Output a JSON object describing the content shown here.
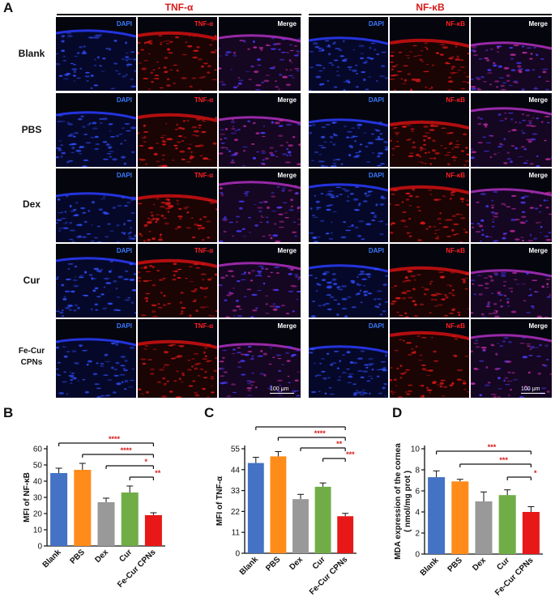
{
  "panel_a": {
    "letter": "A",
    "groups": [
      "TNF-α",
      "NF-κB"
    ],
    "rows": [
      "Blank",
      "PBS",
      "Dex",
      "Cur",
      "Fe-Cur\nCPNs"
    ],
    "channels_tnf": [
      "DAPI",
      "TNF-α",
      "Merge"
    ],
    "channels_nfkb": [
      "DAPI",
      "NF-κB",
      "Merge"
    ],
    "scale_bar": "100 μm"
  },
  "chart_data": [
    {
      "letter": "B",
      "type": "bar",
      "categories": [
        "Blank",
        "PBS",
        "Dex",
        "Cur",
        "Fe-Cur CPNs"
      ],
      "values": [
        45,
        47,
        27,
        33,
        19
      ],
      "errors": [
        3,
        4,
        2.5,
        4,
        1.5
      ],
      "colors": [
        "#4472c4",
        "#ff8c1a",
        "#999999",
        "#70ad47",
        "#e81818"
      ],
      "ylabel": "MFI of NF-κB",
      "ylim": [
        0,
        60
      ],
      "yticks": [
        0,
        10,
        20,
        30,
        40,
        50,
        60
      ],
      "significance": [
        {
          "from": 0,
          "to": 4,
          "label": "****"
        },
        {
          "from": 1,
          "to": 4,
          "label": "****"
        },
        {
          "from": 2,
          "to": 4,
          "label": "*"
        },
        {
          "from": 3,
          "to": 4,
          "label": "**"
        }
      ]
    },
    {
      "letter": "C",
      "type": "bar",
      "categories": [
        "Blank",
        "PBS",
        "Dex",
        "Cur",
        "Fe-Cur CPNs"
      ],
      "values": [
        47.5,
        51,
        28.5,
        35,
        19.5
      ],
      "errors": [
        3,
        2.5,
        2.5,
        2,
        1.5
      ],
      "colors": [
        "#4472c4",
        "#ff8c1a",
        "#999999",
        "#70ad47",
        "#e81818"
      ],
      "ylabel": "MFI of TNF-α",
      "ylim": [
        0,
        55
      ],
      "yticks": [
        0,
        11,
        22,
        33,
        44,
        55
      ],
      "significance": [
        {
          "from": 0,
          "to": 4,
          "label": "****"
        },
        {
          "from": 1,
          "to": 4,
          "label": "****"
        },
        {
          "from": 2,
          "to": 4,
          "label": "**"
        },
        {
          "from": 3,
          "to": 4,
          "label": "***"
        }
      ]
    },
    {
      "letter": "D",
      "type": "bar",
      "categories": [
        "Blank",
        "PBS",
        "Dex",
        "Cur",
        "Fe-Cur CPNs"
      ],
      "values": [
        7.3,
        6.9,
        5.0,
        5.6,
        4.0
      ],
      "errors": [
        0.6,
        0.2,
        0.9,
        0.5,
        0.5
      ],
      "colors": [
        "#4472c4",
        "#ff8c1a",
        "#999999",
        "#70ad47",
        "#e81818"
      ],
      "ylabel": "MDA expression of the cornea\n( nmol/mg prot )",
      "ylim": [
        0,
        10
      ],
      "yticks": [
        0,
        2,
        4,
        6,
        8,
        10
      ],
      "significance": [
        {
          "from": 0,
          "to": 4,
          "label": "***"
        },
        {
          "from": 1,
          "to": 4,
          "label": "***"
        },
        {
          "from": 3,
          "to": 4,
          "label": "*"
        }
      ]
    }
  ]
}
